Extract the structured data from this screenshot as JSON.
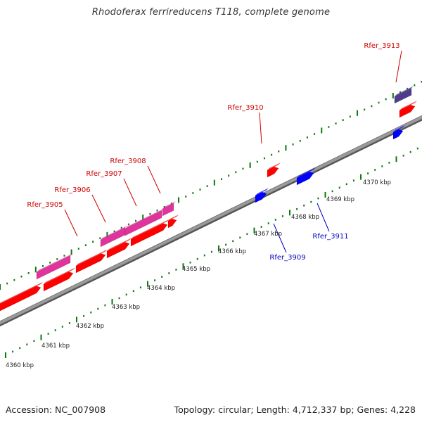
{
  "title": "Rhodoferax ferrireducens T118, complete genome",
  "footer": {
    "accession": "Accession: NC_007908",
    "topology": "Topology: circular; Length: 4,712,337 bp; Genes: 4,228"
  },
  "colors": {
    "backbone": "#8c8c8c",
    "ticks": "#0a7a0a",
    "forward_gene": "#ff0000",
    "reverse_gene": "#0000ff",
    "magenta_feature": "#e0339c",
    "purple_feature": "#4d3d8c",
    "forward_label": "#d10000",
    "reverse_label": "#0000c0"
  },
  "scale_labels": [
    "4360 kbp",
    "4361 kbp",
    "4362 kbp",
    "4363 kbp",
    "4364 kbp",
    "4365 kbp",
    "4366 kbp",
    "4367 kbp",
    "4368 kbp",
    "4369 kbp",
    "4370 kbp"
  ],
  "gene_labels": {
    "forward": [
      "Rfer_3905",
      "Rfer_3906",
      "Rfer_3907",
      "Rfer_3908",
      "Rfer_3910",
      "Rfer_3913"
    ],
    "reverse": [
      "Rfer_3909",
      "Rfer_3911"
    ]
  }
}
